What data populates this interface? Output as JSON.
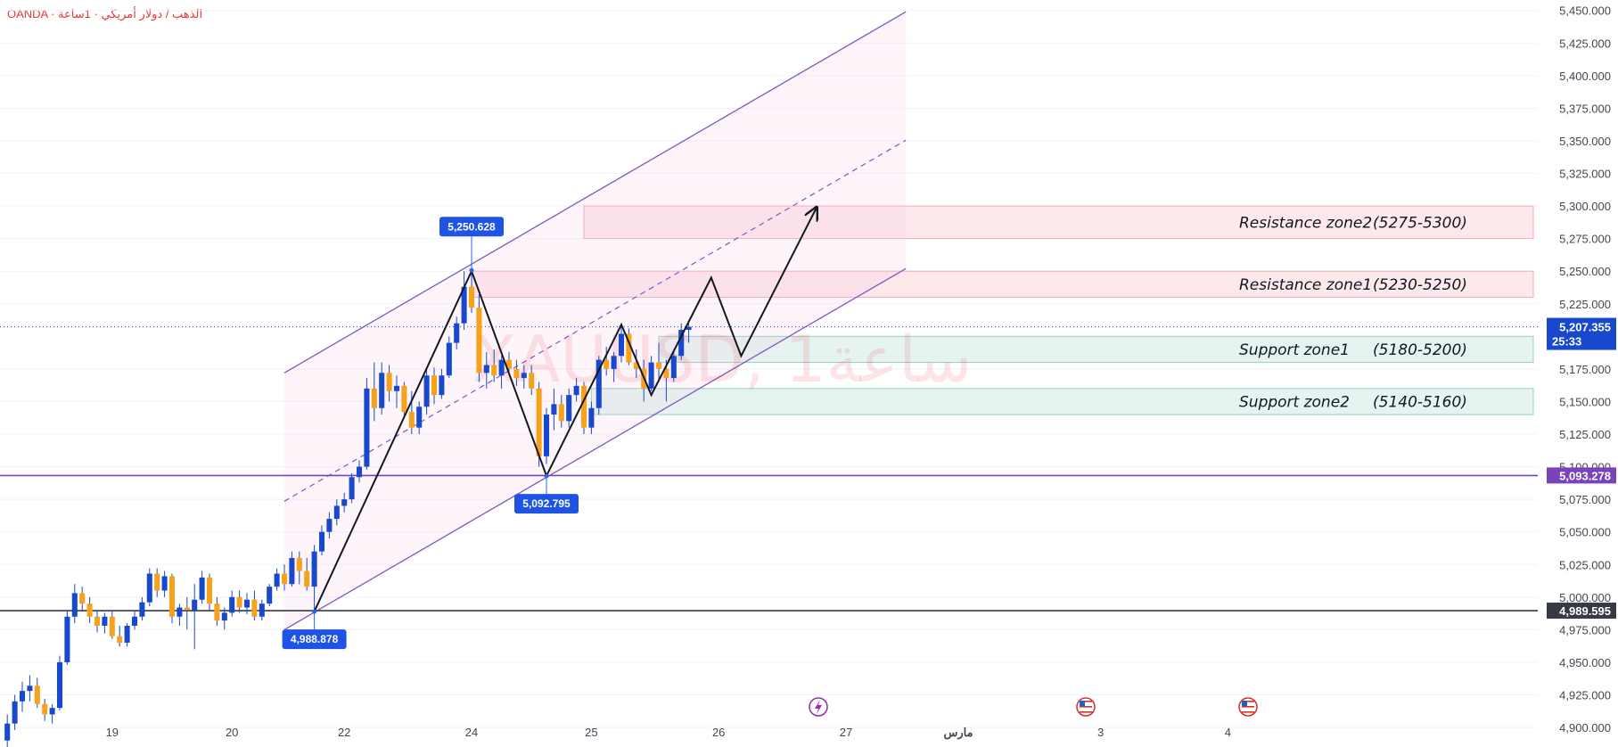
{
  "header": {
    "source": "OANDA · الذهب / دولار أمريكي · 1ساعة"
  },
  "watermark": "XAUUSD, 1ساعة",
  "chart_data": {
    "type": "candlestick",
    "symbol": "XAUUSD",
    "broker": "OANDA",
    "timeframe": "1ساعة",
    "ylim": [
      4885,
      5458
    ],
    "y_ticks": [
      "5,450.000",
      "5,425.000",
      "5,400.000",
      "5,375.000",
      "5,350.000",
      "5,325.000",
      "5,300.000",
      "5,275.000",
      "5,250.000",
      "5,225.000",
      "5,175.000",
      "5,150.000",
      "5,125.000",
      "5,100.000",
      "5,075.000",
      "5,050.000",
      "5,025.000",
      "5,000.000",
      "4,975.000",
      "4,950.000",
      "4,925.000",
      "4,900.000"
    ],
    "y_tick_values": [
      5450,
      5425,
      5400,
      5375,
      5350,
      5325,
      5300,
      5275,
      5250,
      5225,
      5175,
      5150,
      5125,
      5100,
      5075,
      5050,
      5025,
      5000,
      4975,
      4950,
      4925,
      4900
    ],
    "x_ticks": [
      {
        "label": "19",
        "bar": 14
      },
      {
        "label": "20",
        "bar": 30
      },
      {
        "label": "22",
        "bar": 45
      },
      {
        "label": "24",
        "bar": 62
      },
      {
        "label": "25",
        "bar": 78
      },
      {
        "label": "26",
        "bar": 95
      },
      {
        "label": "27",
        "bar": 112
      },
      {
        "label": "مارس",
        "bar": 127
      },
      {
        "label": "3",
        "bar": 146
      },
      {
        "label": "4",
        "bar": 163
      }
    ],
    "current_price": {
      "value": 5207.355,
      "label": "5,207.355",
      "countdown": "25:33"
    },
    "horizontal_lines": [
      {
        "value": 5093.278,
        "label": "5,093.278",
        "color": "#7b43b9"
      },
      {
        "value": 4989.595,
        "label": "4,989.595",
        "color": "#363a45"
      }
    ],
    "pivot_labels": [
      {
        "label": "5,250.628",
        "value": 5250.628,
        "bar": 62,
        "position": "above"
      },
      {
        "label": "5,092.795",
        "value": 5092.795,
        "bar": 72,
        "position": "below"
      },
      {
        "label": "4,988.878",
        "value": 4988.878,
        "bar": 41,
        "position": "below"
      }
    ],
    "zones": [
      {
        "name": "Resistance zone2",
        "range": "(5275-5300)",
        "low": 5275,
        "high": 5300,
        "from_bar": 77,
        "color": "#f23645"
      },
      {
        "name": "Resistance zone1",
        "range": "(5230-5250)",
        "low": 5230,
        "high": 5250,
        "from_bar": 62,
        "color": "#f23645"
      },
      {
        "name": "Support zone1",
        "range": "(5180-5200)",
        "low": 5180,
        "high": 5200,
        "from_bar": 87,
        "color": "#22ab94"
      },
      {
        "name": "Support zone2",
        "range": "(5140-5160)",
        "low": 5140,
        "high": 5160,
        "from_bar": 78,
        "color": "#22ab94"
      }
    ],
    "channel": {
      "lower": [
        [
          37,
          4975
        ],
        [
          120,
          5252
        ]
      ],
      "upper": [
        [
          37,
          5172
        ],
        [
          120,
          5449
        ]
      ],
      "mid": [
        [
          37,
          5073.5
        ],
        [
          120,
          5350.5
        ]
      ],
      "color": "#7e57c2"
    },
    "projection_path": [
      [
        41,
        4989
      ],
      [
        62,
        5250
      ],
      [
        72,
        5093
      ],
      [
        82,
        5209
      ],
      [
        86,
        5155
      ],
      [
        94,
        5245
      ],
      [
        98,
        5185
      ],
      [
        108,
        5298
      ]
    ],
    "colors": {
      "up": "#1848cc",
      "down": "#f7a21b",
      "wick": "#1848cc"
    },
    "candles": [
      [
        4890,
        4910,
        4885,
        4903
      ],
      [
        4903,
        4925,
        4898,
        4920
      ],
      [
        4920,
        4935,
        4912,
        4928
      ],
      [
        4928,
        4940,
        4920,
        4932
      ],
      [
        4932,
        4938,
        4915,
        4918
      ],
      [
        4918,
        4922,
        4905,
        4910
      ],
      [
        4910,
        4918,
        4903,
        4915
      ],
      [
        4915,
        4955,
        4913,
        4950
      ],
      [
        4950,
        4990,
        4948,
        4985
      ],
      [
        4985,
        5010,
        4980,
        5003
      ],
      [
        5003,
        5008,
        4990,
        4995
      ],
      [
        4995,
        5000,
        4980,
        4985
      ],
      [
        4985,
        4990,
        4973,
        4978
      ],
      [
        4978,
        4988,
        4972,
        4985
      ],
      [
        4985,
        4990,
        4968,
        4970
      ],
      [
        4970,
        4978,
        4962,
        4965
      ],
      [
        4965,
        4980,
        4962,
        4978
      ],
      [
        4978,
        4990,
        4975,
        4985
      ],
      [
        4985,
        5000,
        4982,
        4996
      ],
      [
        4996,
        5022,
        4993,
        5018
      ],
      [
        5018,
        5022,
        5000,
        5005
      ],
      [
        5005,
        5020,
        5000,
        5016
      ],
      [
        5016,
        5018,
        4980,
        4985
      ],
      [
        4985,
        4995,
        4978,
        4992
      ],
      [
        4992,
        5000,
        4975,
        4990
      ],
      [
        4990,
        5010,
        4960,
        4998
      ],
      [
        4998,
        5020,
        4995,
        5015
      ],
      [
        5015,
        5018,
        4990,
        4995
      ],
      [
        4995,
        5000,
        4978,
        4982
      ],
      [
        4982,
        4992,
        4975,
        4988
      ],
      [
        4988,
        5005,
        4985,
        5000
      ],
      [
        5000,
        5005,
        4988,
        4992
      ],
      [
        4992,
        5003,
        4987,
        4998
      ],
      [
        4998,
        5005,
        4982,
        4985
      ],
      [
        4985,
        4998,
        4982,
        4995
      ],
      [
        4995,
        5010,
        4993,
        5008
      ],
      [
        5008,
        5022,
        5005,
        5018
      ],
      [
        5018,
        5025,
        5005,
        5010
      ],
      [
        5010,
        5035,
        5008,
        5030
      ],
      [
        5030,
        5035,
        5010,
        5020
      ],
      [
        5020,
        5030,
        5005,
        5008
      ],
      [
        5008,
        5040,
        4990,
        5035
      ],
      [
        5035,
        5055,
        5032,
        5050
      ],
      [
        5050,
        5065,
        5045,
        5060
      ],
      [
        5060,
        5075,
        5055,
        5070
      ],
      [
        5070,
        5080,
        5065,
        5075
      ],
      [
        5075,
        5095,
        5072,
        5092
      ],
      [
        5092,
        5105,
        5088,
        5100
      ],
      [
        5100,
        5168,
        5098,
        5160
      ],
      [
        5160,
        5180,
        5135,
        5145
      ],
      [
        5145,
        5180,
        5140,
        5172
      ],
      [
        5172,
        5178,
        5150,
        5158
      ],
      [
        5158,
        5170,
        5145,
        5162
      ],
      [
        5162,
        5165,
        5138,
        5142
      ],
      [
        5142,
        5158,
        5125,
        5130
      ],
      [
        5130,
        5150,
        5125,
        5146
      ],
      [
        5146,
        5175,
        5140,
        5170
      ],
      [
        5170,
        5176,
        5148,
        5155
      ],
      [
        5155,
        5175,
        5152,
        5170
      ],
      [
        5170,
        5200,
        5168,
        5195
      ],
      [
        5195,
        5215,
        5190,
        5210
      ],
      [
        5210,
        5250,
        5205,
        5238
      ],
      [
        5238,
        5248,
        5218,
        5222
      ],
      [
        5222,
        5232,
        5165,
        5172
      ],
      [
        5172,
        5188,
        5160,
        5178
      ],
      [
        5178,
        5190,
        5165,
        5170
      ],
      [
        5170,
        5185,
        5160,
        5182
      ],
      [
        5182,
        5188,
        5170,
        5175
      ],
      [
        5175,
        5182,
        5162,
        5168
      ],
      [
        5168,
        5178,
        5160,
        5172
      ],
      [
        5172,
        5178,
        5155,
        5160
      ],
      [
        5160,
        5165,
        5100,
        5108
      ],
      [
        5108,
        5145,
        5102,
        5140
      ],
      [
        5140,
        5160,
        5128,
        5148
      ],
      [
        5148,
        5155,
        5130,
        5135
      ],
      [
        5135,
        5160,
        5130,
        5155
      ],
      [
        5155,
        5168,
        5150,
        5162
      ],
      [
        5162,
        5165,
        5125,
        5130
      ],
      [
        5130,
        5150,
        5125,
        5145
      ],
      [
        5145,
        5185,
        5140,
        5182
      ],
      [
        5182,
        5192,
        5170,
        5175
      ],
      [
        5175,
        5188,
        5165,
        5185
      ],
      [
        5185,
        5210,
        5180,
        5202
      ],
      [
        5202,
        5206,
        5178,
        5180
      ],
      [
        5180,
        5190,
        5168,
        5175
      ],
      [
        5175,
        5182,
        5150,
        5160
      ],
      [
        5160,
        5185,
        5158,
        5180
      ],
      [
        5180,
        5195,
        5165,
        5175
      ],
      [
        5175,
        5182,
        5150,
        5168
      ],
      [
        5168,
        5190,
        5165,
        5185
      ],
      [
        5185,
        5210,
        5182,
        5205
      ],
      [
        5205,
        5210,
        5195,
        5207.355
      ]
    ]
  }
}
